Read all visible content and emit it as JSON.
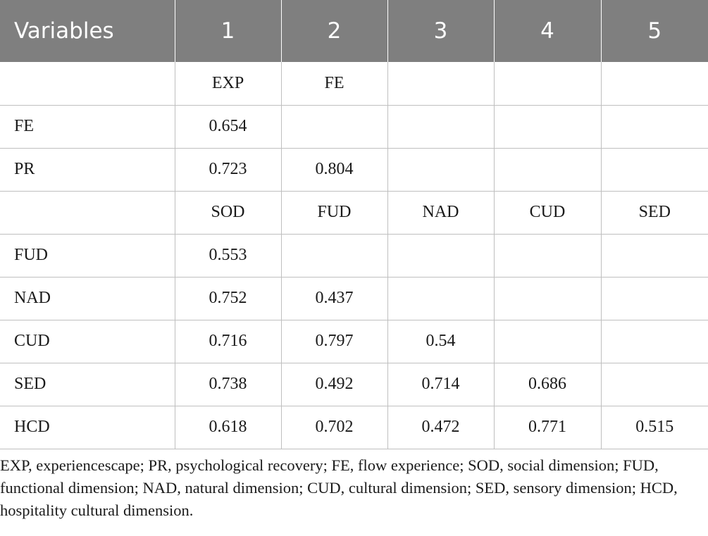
{
  "table": {
    "header": [
      "Variables",
      "1",
      "2",
      "3",
      "4",
      "5"
    ],
    "rows": [
      [
        "",
        "EXP",
        "FE",
        "",
        "",
        ""
      ],
      [
        "FE",
        "0.654",
        "",
        "",
        "",
        ""
      ],
      [
        "PR",
        "0.723",
        "0.804",
        "",
        "",
        ""
      ],
      [
        "",
        "SOD",
        "FUD",
        "NAD",
        "CUD",
        "SED"
      ],
      [
        "FUD",
        "0.553",
        "",
        "",
        "",
        ""
      ],
      [
        "NAD",
        "0.752",
        "0.437",
        "",
        "",
        ""
      ],
      [
        "CUD",
        "0.716",
        "0.797",
        "0.54",
        "",
        ""
      ],
      [
        "SED",
        "0.738",
        "0.492",
        "0.714",
        "0.686",
        ""
      ],
      [
        "HCD",
        "0.618",
        "0.702",
        "0.472",
        "0.771",
        "0.515"
      ]
    ]
  },
  "footnote": "EXP, experiencescape; PR, psychological recovery; FE, flow experience; SOD, social dimension; FUD, functional dimension; NAD, natural dimension; CUD, cultural dimension; SED, sensory dimension; HCD, hospitality cultural dimension."
}
